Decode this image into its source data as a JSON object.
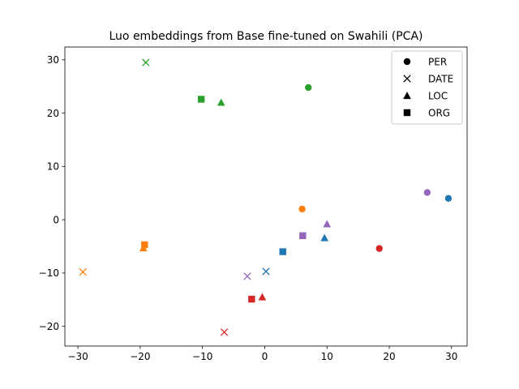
{
  "chart_data": {
    "type": "scatter",
    "title": "Luo embeddings from Base fine-tuned on Swahili (PCA)",
    "xlabel": "",
    "ylabel": "",
    "xlim": [
      -32.1,
      32.5
    ],
    "ylim": [
      -23.7,
      32.4
    ],
    "xticks": [
      -30,
      -20,
      -10,
      0,
      10,
      20,
      30
    ],
    "yticks": [
      -20,
      -10,
      0,
      10,
      20,
      30
    ],
    "grid": false,
    "legend_position": "top-right",
    "legend": [
      {
        "label": "PER",
        "marker": "circle"
      },
      {
        "label": "DATE",
        "marker": "x"
      },
      {
        "label": "LOC",
        "marker": "triangle"
      },
      {
        "label": "ORG",
        "marker": "square"
      }
    ],
    "points": [
      {
        "x": 29.5,
        "y": 4.0,
        "marker": "circle",
        "color": "#1f77b4"
      },
      {
        "x": 0.2,
        "y": -9.7,
        "marker": "x",
        "color": "#1f77b4"
      },
      {
        "x": 9.6,
        "y": -3.4,
        "marker": "triangle",
        "color": "#1f77b4"
      },
      {
        "x": 2.9,
        "y": -6.0,
        "marker": "square",
        "color": "#1f77b4"
      },
      {
        "x": 6.0,
        "y": 2.0,
        "marker": "circle",
        "color": "#ff7f0e"
      },
      {
        "x": -29.2,
        "y": -9.8,
        "marker": "x",
        "color": "#ff7f0e"
      },
      {
        "x": -19.5,
        "y": -5.3,
        "marker": "triangle",
        "color": "#ff7f0e"
      },
      {
        "x": -19.3,
        "y": -4.7,
        "marker": "square",
        "color": "#ff7f0e"
      },
      {
        "x": 7.0,
        "y": 24.8,
        "marker": "circle",
        "color": "#2ca02c"
      },
      {
        "x": -19.1,
        "y": 29.5,
        "marker": "x",
        "color": "#2ca02c"
      },
      {
        "x": -7.0,
        "y": 22.0,
        "marker": "triangle",
        "color": "#2ca02c"
      },
      {
        "x": -10.2,
        "y": 22.6,
        "marker": "square",
        "color": "#2ca02c"
      },
      {
        "x": 18.4,
        "y": -5.4,
        "marker": "circle",
        "color": "#d62728"
      },
      {
        "x": -6.5,
        "y": -21.1,
        "marker": "x",
        "color": "#d62728"
      },
      {
        "x": -0.4,
        "y": -14.5,
        "marker": "triangle",
        "color": "#d62728"
      },
      {
        "x": -2.1,
        "y": -14.9,
        "marker": "square",
        "color": "#d62728"
      },
      {
        "x": 26.1,
        "y": 5.1,
        "marker": "circle",
        "color": "#9467bd"
      },
      {
        "x": -2.8,
        "y": -10.6,
        "marker": "x",
        "color": "#9467bd"
      },
      {
        "x": 10.0,
        "y": -0.8,
        "marker": "triangle",
        "color": "#9467bd"
      },
      {
        "x": 6.1,
        "y": -3.0,
        "marker": "square",
        "color": "#9467bd"
      }
    ]
  }
}
